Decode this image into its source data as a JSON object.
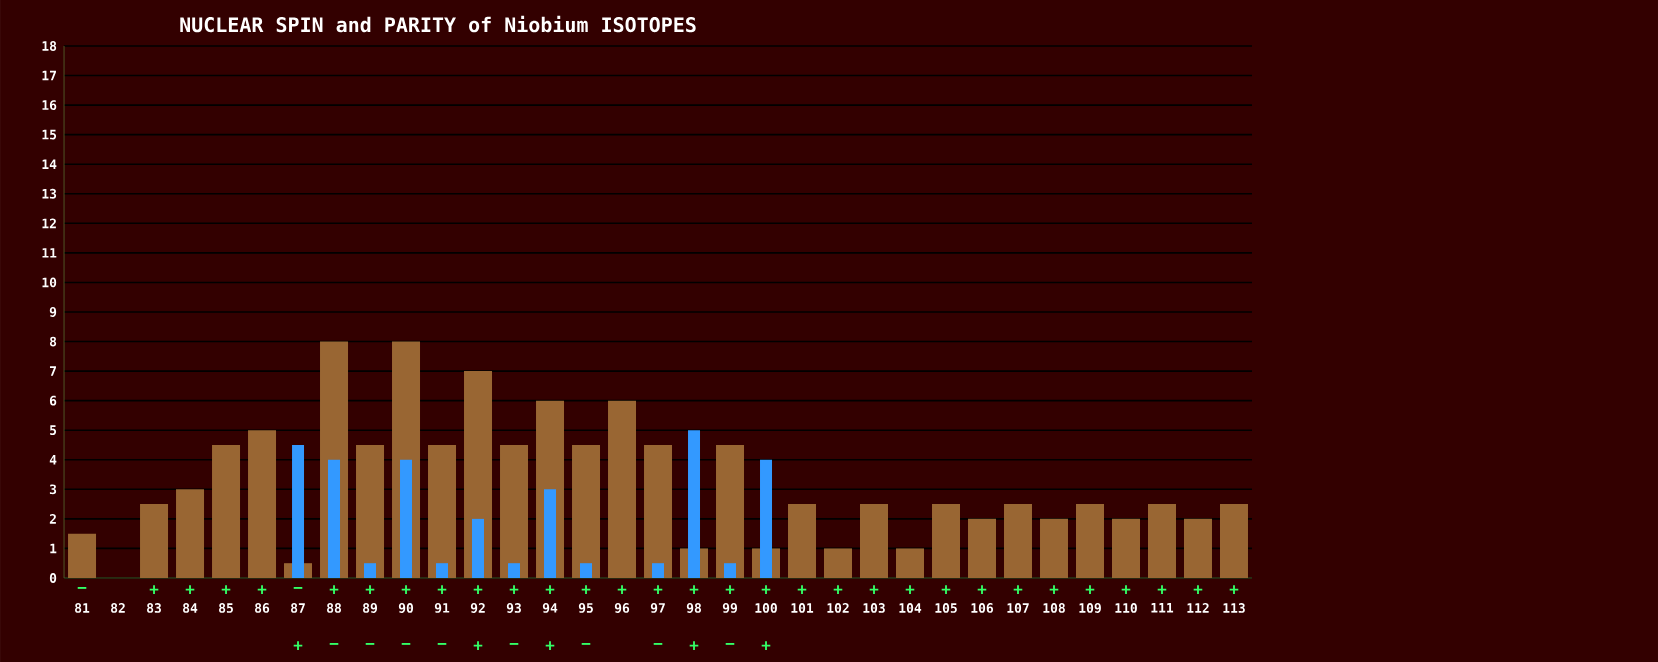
{
  "chart_data": {
    "type": "bar",
    "title": "NUCLEAR SPIN and PARITY of Niobium ISOTOPES",
    "categories": [
      "81",
      "82",
      "83",
      "84",
      "85",
      "86",
      "87",
      "88",
      "89",
      "90",
      "91",
      "92",
      "93",
      "94",
      "95",
      "96",
      "97",
      "98",
      "99",
      "100",
      "101",
      "102",
      "103",
      "104",
      "105",
      "106",
      "107",
      "108",
      "109",
      "110",
      "111",
      "112",
      "113"
    ],
    "series": [
      {
        "color": "#996633",
        "values": [
          1.5,
          0,
          2.5,
          3,
          4.5,
          5,
          0.5,
          8,
          4.5,
          8,
          4.5,
          7,
          4.5,
          6,
          4.5,
          6,
          4.5,
          1,
          4.5,
          1,
          2.5,
          1,
          2.5,
          1,
          2.5,
          2,
          2.5,
          2,
          2.5,
          2,
          2.5,
          2,
          2.5
        ],
        "value_labels": [
          "−",
          null,
          "+",
          "+",
          "+",
          "+",
          "−",
          "+",
          "+",
          "+",
          "+",
          "+",
          "+",
          "+",
          "+",
          "+",
          "+",
          "+",
          "+",
          "+",
          "+",
          "+",
          "+",
          "+",
          "+",
          "+",
          "+",
          "+",
          "+",
          "+",
          "+",
          "+",
          "+"
        ]
      },
      {
        "color": "#3399ff",
        "values": [
          null,
          null,
          null,
          null,
          null,
          null,
          4.5,
          4,
          0.5,
          4,
          0.5,
          2,
          0.5,
          3,
          0.5,
          null,
          0.5,
          5,
          0.5,
          4,
          null,
          null,
          null,
          null,
          null,
          null,
          null,
          null,
          null,
          null,
          null,
          null,
          null
        ],
        "value_labels": [
          null,
          null,
          null,
          null,
          null,
          null,
          "+",
          "−",
          "−",
          "−",
          "−",
          "+",
          "−",
          "+",
          "−",
          null,
          "−",
          "+",
          "−",
          "+",
          null,
          null,
          null,
          null,
          null,
          null,
          null,
          null,
          null,
          null,
          null,
          null,
          null
        ]
      }
    ],
    "ylim": [
      0,
      18
    ],
    "yticks": [
      0,
      1,
      2,
      3,
      4,
      5,
      6,
      7,
      8,
      9,
      10,
      11,
      12,
      13,
      14,
      15,
      16,
      17,
      18
    ],
    "grid": "y"
  }
}
